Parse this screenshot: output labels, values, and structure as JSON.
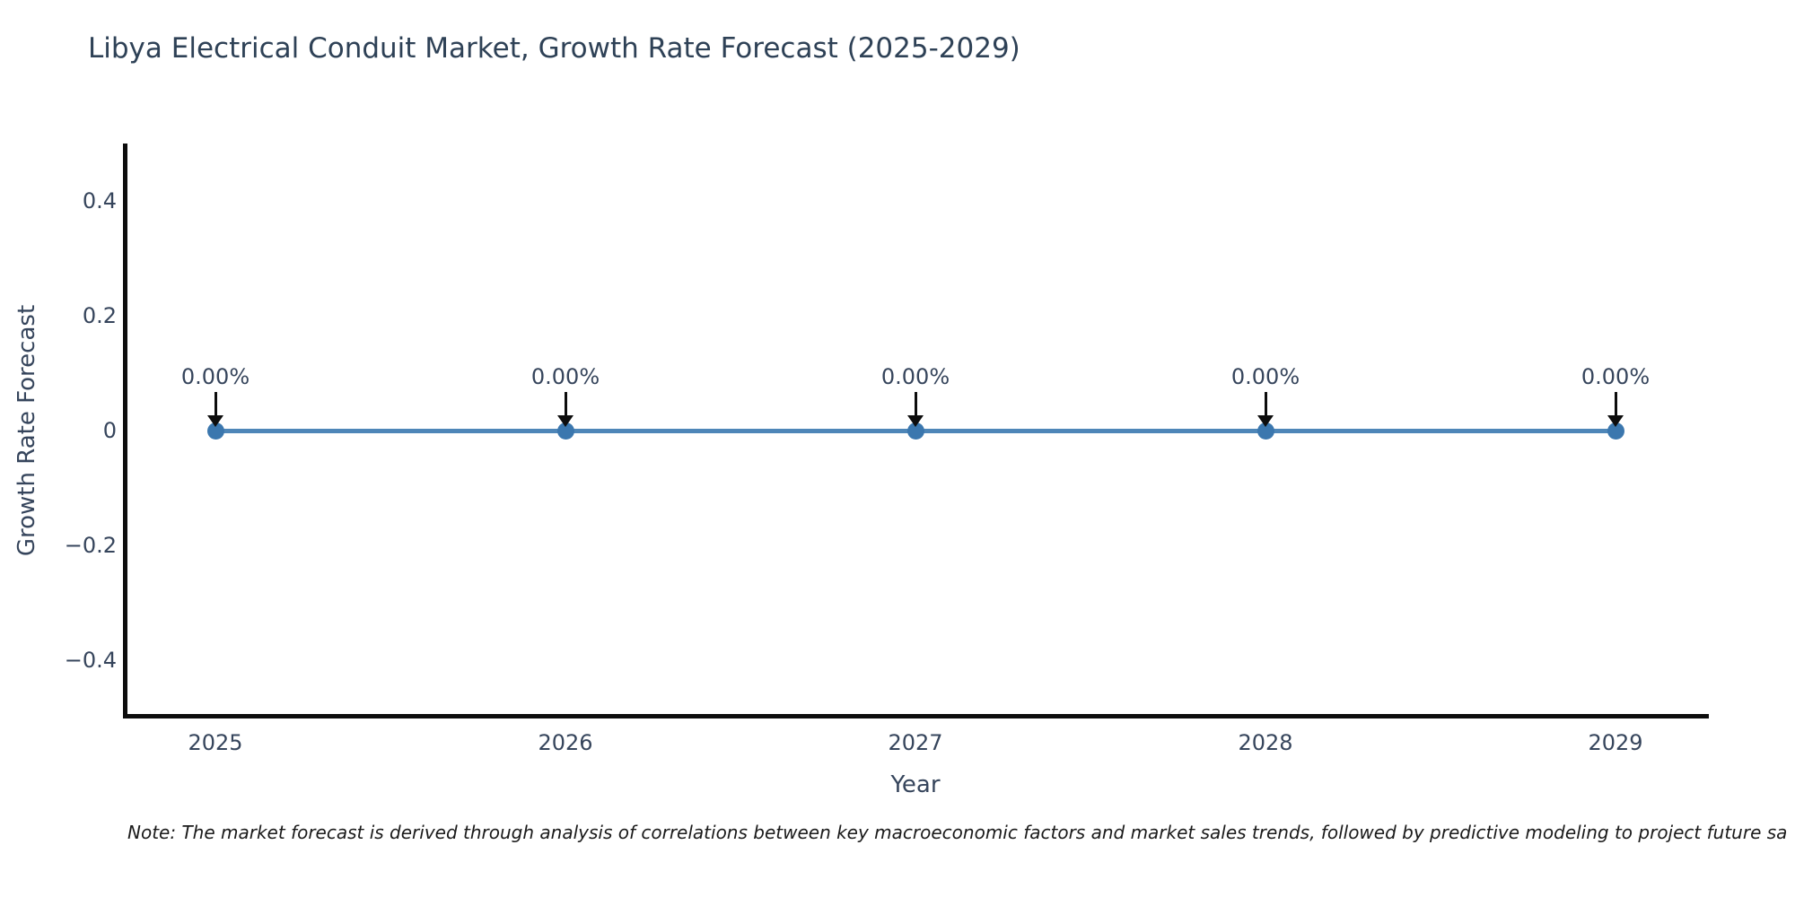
{
  "title": "Libya Electrical Conduit Market, Growth Rate Forecast (2025-2029)",
  "note": "Note: The market forecast is derived through analysis of correlations between key macroeconomic factors and market sales trends, followed by predictive modeling to project future sa",
  "chart_data": {
    "type": "line",
    "x": [
      2025,
      2026,
      2027,
      2028,
      2029
    ],
    "series": [
      {
        "name": "Growth Rate Forecast",
        "values": [
          0,
          0,
          0,
          0,
          0
        ]
      }
    ],
    "point_labels": [
      "0.00%",
      "0.00%",
      "0.00%",
      "0.00%",
      "0.00%"
    ],
    "title": "Libya Electrical Conduit Market, Growth Rate Forecast (2025-2029)",
    "xlabel": "Year",
    "ylabel": "Growth Rate Forecast",
    "x_tick_labels": [
      "2025",
      "2026",
      "2027",
      "2028",
      "2029"
    ],
    "y_ticks": [
      0.4,
      0.2,
      0,
      -0.2,
      -0.4
    ],
    "y_tick_labels": [
      "0.4",
      "0.2",
      "0",
      "−0.2",
      "−0.4"
    ],
    "ylim": [
      -0.5,
      0.5
    ],
    "grid": false,
    "legend_position": "none",
    "annotation_style": "black-arrow-down-to-point",
    "colors": {
      "line": "#4e86b8",
      "marker": "#3b77ae",
      "arrow": "#0d0d0d",
      "spine": "#0d0d0d",
      "text": "#36455c",
      "title_text": "#2e4156",
      "note_text": "#1a1a1a",
      "background": "#ffffff"
    }
  }
}
